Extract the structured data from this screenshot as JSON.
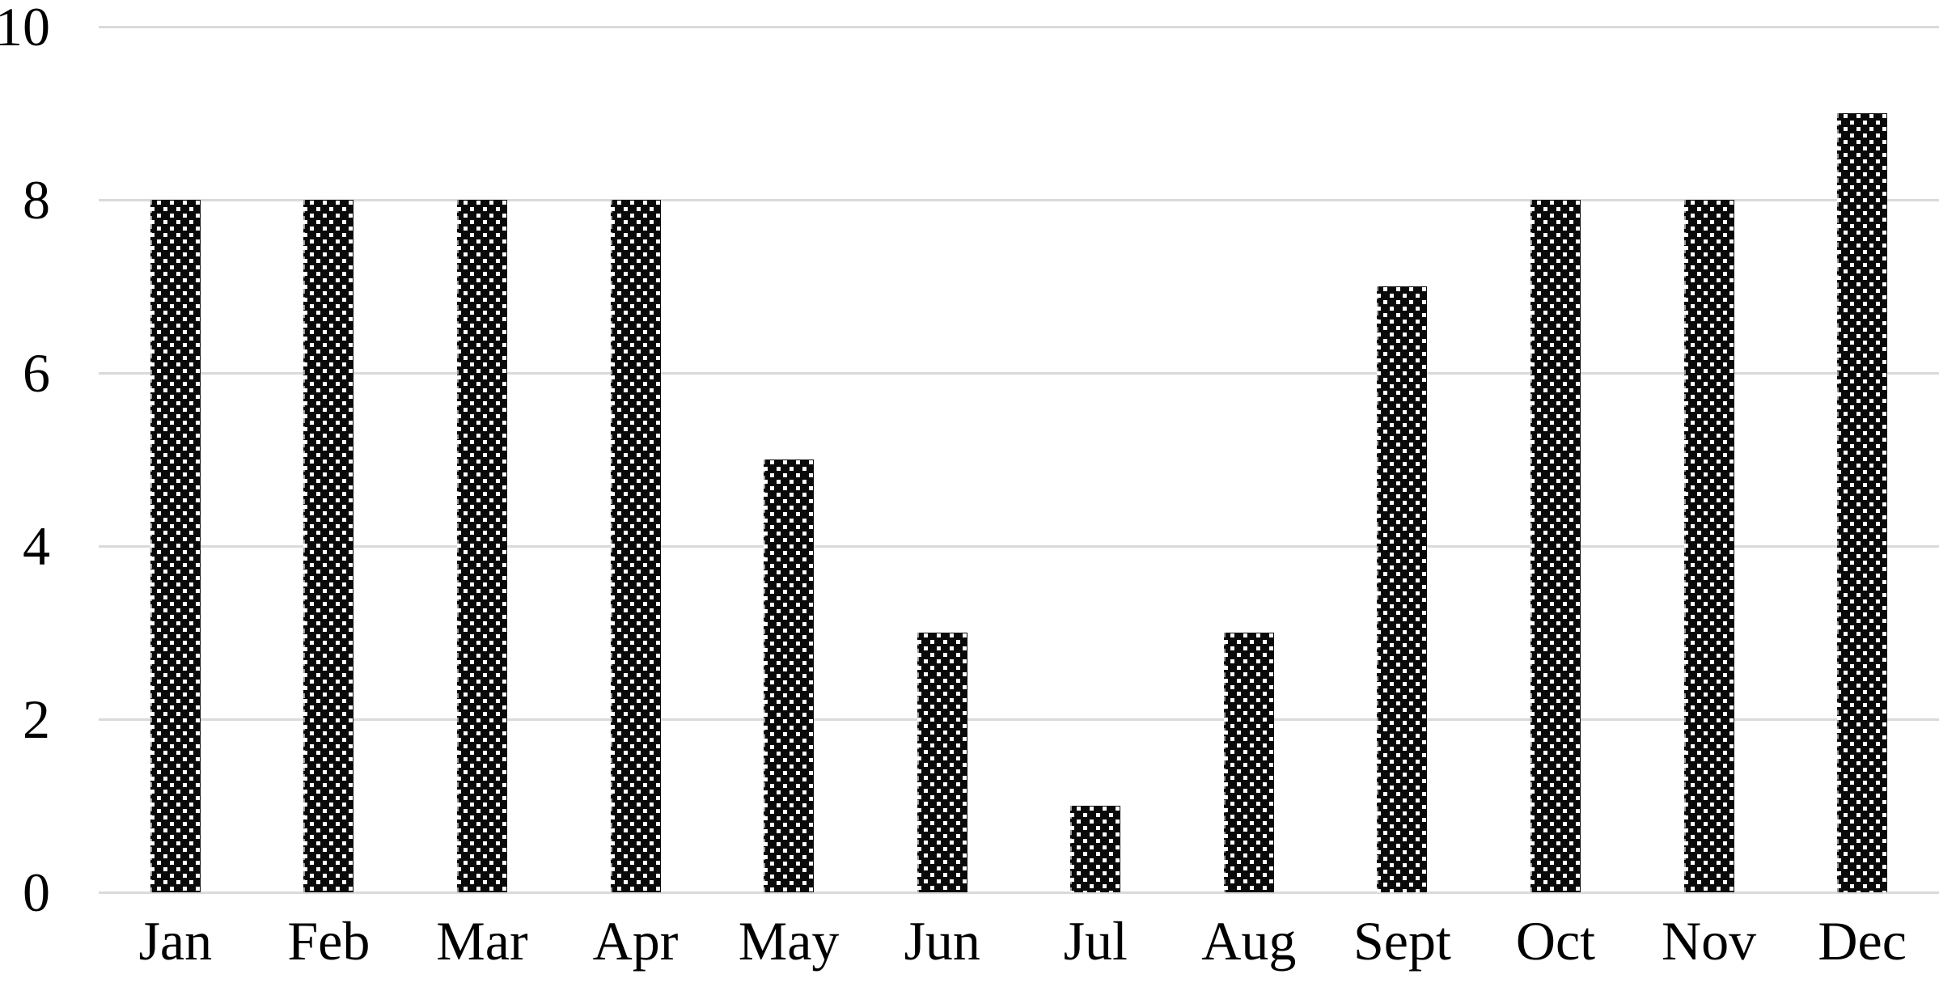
{
  "chart_data": {
    "type": "bar",
    "categories": [
      "Jan",
      "Feb",
      "Mar",
      "Apr",
      "May",
      "Jun",
      "Jul",
      "Aug",
      "Sept",
      "Oct",
      "Nov",
      "Dec"
    ],
    "values": [
      8,
      8,
      8,
      8,
      5,
      3,
      1,
      3,
      7,
      8,
      8,
      9
    ],
    "title": "",
    "xlabel": "",
    "ylabel": "",
    "ylim": [
      0,
      10
    ],
    "yticks": [
      0,
      2,
      4,
      6,
      8,
      10
    ],
    "grid": true,
    "legend_position": "none",
    "colors": {
      "bar_fill": "#0a0a0a",
      "bar_pattern_dots": "#ffffff",
      "bar_edge_dash": "rgba(255,255,255,0.6)",
      "gridline": "#dadada",
      "text": "#000000",
      "background": "#ffffff"
    }
  }
}
